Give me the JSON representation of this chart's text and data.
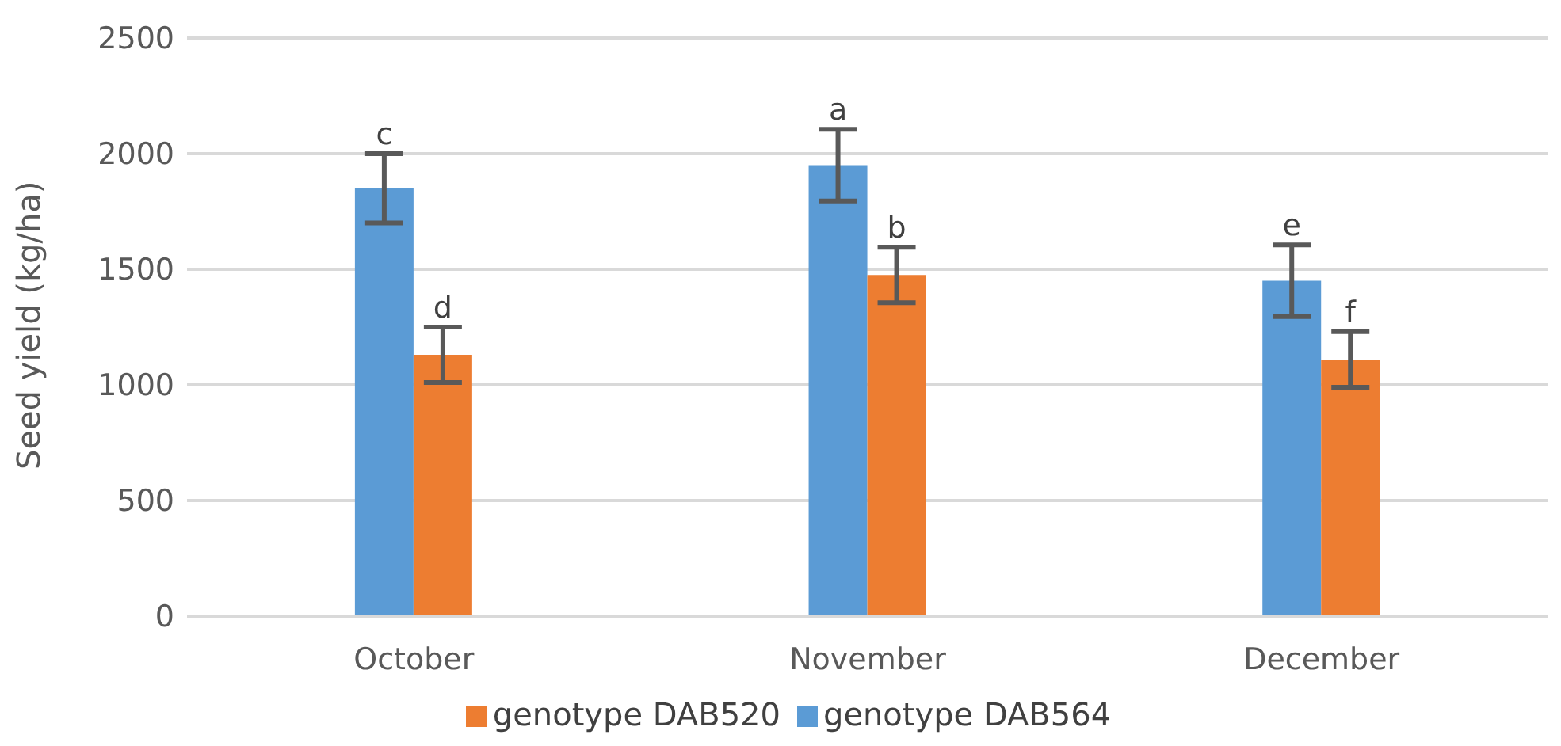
{
  "chart_data": {
    "type": "bar",
    "ylabel": "Seed  yield (kg/ha)",
    "categories": [
      "October",
      "November",
      "December"
    ],
    "series": [
      {
        "name": "genotype DAB564",
        "color": "#5b9bd5",
        "values": [
          1850,
          1950,
          1450
        ],
        "errors": [
          150,
          155,
          155
        ],
        "value_labels": [
          "c",
          "a",
          "e"
        ]
      },
      {
        "name": "genotype DAB520",
        "color": "#ed7d31",
        "values": [
          1130,
          1475,
          1110
        ],
        "errors": [
          120,
          120,
          120
        ],
        "value_labels": [
          "d",
          "b",
          "f"
        ]
      }
    ],
    "ylim": [
      0,
      2500
    ],
    "yticks": [
      0,
      500,
      1000,
      1500,
      2000,
      2500
    ],
    "grid": "y",
    "legend": "bottom"
  }
}
